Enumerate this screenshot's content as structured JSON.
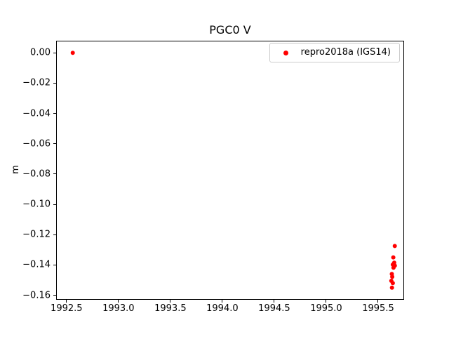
{
  "chart_data": {
    "type": "scatter",
    "title": "PGC0 V",
    "xlabel": "",
    "ylabel": "m",
    "grid": false,
    "xlim": [
      1992.4,
      1995.75
    ],
    "ylim": [
      -0.163,
      0.008
    ],
    "xticks": [
      1992.5,
      1993.0,
      1993.5,
      1994.0,
      1994.5,
      1995.0,
      1995.5
    ],
    "xtick_labels": [
      "1992.5",
      "1993.0",
      "1993.5",
      "1994.0",
      "1994.5",
      "1995.0",
      "1995.5"
    ],
    "yticks": [
      0.0,
      -0.02,
      -0.04,
      -0.06,
      -0.08,
      -0.1,
      -0.12,
      -0.14,
      -0.16
    ],
    "ytick_labels": [
      "0.00",
      "−0.02",
      "−0.04",
      "−0.06",
      "−0.08",
      "−0.10",
      "−0.12",
      "−0.14",
      "−0.16"
    ],
    "legend": {
      "position": "upper right",
      "entries": [
        {
          "label": "repro2018a (IGS14)",
          "marker": "dot-marker",
          "color": "#ff0000"
        }
      ]
    },
    "series": [
      {
        "name": "repro2018a (IGS14)",
        "color": "#ff0000",
        "marker_radius": 3,
        "points": [
          [
            1992.56,
            0.0
          ],
          [
            1995.66,
            -0.1275
          ],
          [
            1995.646,
            -0.135
          ],
          [
            1995.655,
            -0.1385
          ],
          [
            1995.641,
            -0.1398
          ],
          [
            1995.661,
            -0.1405
          ],
          [
            1995.648,
            -0.1418
          ],
          [
            1995.632,
            -0.146
          ],
          [
            1995.636,
            -0.1478
          ],
          [
            1995.627,
            -0.1505
          ],
          [
            1995.641,
            -0.152
          ],
          [
            1995.633,
            -0.155
          ]
        ]
      }
    ]
  }
}
